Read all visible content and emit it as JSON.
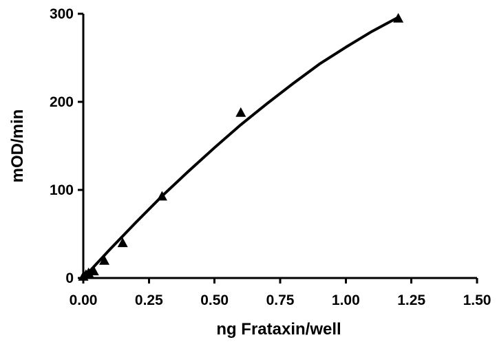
{
  "chart_data": {
    "type": "scatter",
    "xlabel": "ng Frataxin/well",
    "ylabel": "mOD/min",
    "xlim": [
      0,
      1.5
    ],
    "ylim": [
      0,
      300
    ],
    "x_ticks": [
      "0.00",
      "0.25",
      "0.50",
      "0.75",
      "1.00",
      "1.25",
      "1.50"
    ],
    "y_ticks": [
      "0",
      "100",
      "200",
      "300"
    ],
    "grid": false,
    "series": [
      {
        "marker": "triangle",
        "x": [
          0.0,
          0.01,
          0.02,
          0.04,
          0.08,
          0.15,
          0.3,
          0.6,
          1.2
        ],
        "y": [
          2,
          4,
          6,
          8,
          20,
          40,
          93,
          188,
          295
        ]
      }
    ],
    "fit_curve": {
      "type": "line",
      "x": [
        0.0,
        0.1,
        0.2,
        0.3,
        0.4,
        0.5,
        0.6,
        0.7,
        0.8,
        0.9,
        1.0,
        1.1,
        1.2
      ],
      "y": [
        0,
        32,
        63,
        93,
        121,
        148,
        174,
        198,
        221,
        243,
        262,
        280,
        296
      ]
    }
  }
}
